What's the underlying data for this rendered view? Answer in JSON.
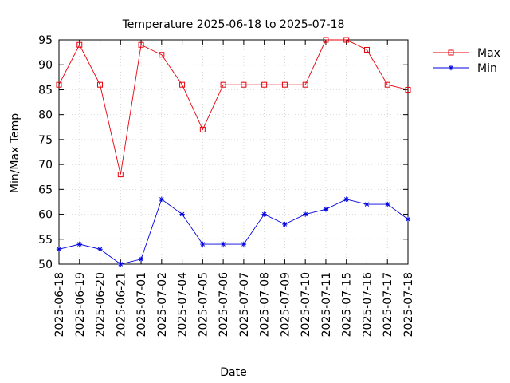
{
  "chart_data": {
    "type": "line",
    "title": "Temperature 2025-06-18 to 2025-07-18",
    "xlabel": "Date",
    "ylabel": "Min/Max Temp",
    "ylim": [
      50,
      95
    ],
    "yticks": [
      50,
      55,
      60,
      65,
      70,
      75,
      80,
      85,
      90,
      95
    ],
    "grid": true,
    "legend_position": "top-right, outside plot",
    "categories": [
      "2025-06-18",
      "2025-06-19",
      "2025-06-20",
      "2025-06-21",
      "2025-07-01",
      "2025-07-02",
      "2025-07-04",
      "2025-07-05",
      "2025-07-06",
      "2025-07-07",
      "2025-07-08",
      "2025-07-09",
      "2025-07-10",
      "2025-07-11",
      "2025-07-15",
      "2025-07-16",
      "2025-07-17",
      "2025-07-18"
    ],
    "series": [
      {
        "name": "Max",
        "color": "#e8000b",
        "marker": "square",
        "values": [
          86,
          94,
          86,
          68,
          94,
          92,
          86,
          77,
          86,
          86,
          86,
          86,
          86,
          95,
          95,
          93,
          86,
          85
        ]
      },
      {
        "name": "Min",
        "color": "#0000e0",
        "marker": "asterisk",
        "values": [
          53,
          54,
          53,
          50,
          51,
          63,
          60,
          54,
          54,
          54,
          60,
          58,
          60,
          61,
          63,
          62,
          62,
          59
        ]
      }
    ]
  }
}
